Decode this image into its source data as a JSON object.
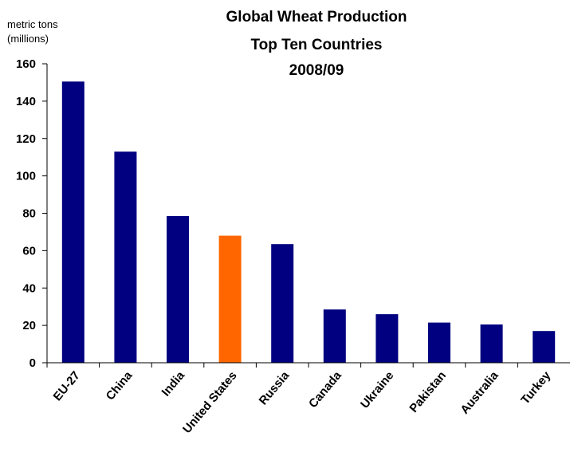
{
  "chart_data": {
    "type": "bar",
    "title_lines": [
      "Global Wheat Production",
      "Top Ten Countries",
      "2008/09"
    ],
    "ylabel_lines": [
      "metric tons",
      "(millions)"
    ],
    "xlabel": "",
    "categories": [
      "EU-27",
      "China",
      "India",
      "United States",
      "Russia",
      "Canada",
      "Ukraine",
      "Pakistan",
      "Australia",
      "Turkey"
    ],
    "values": [
      150.5,
      113,
      78.5,
      68,
      63.5,
      28.5,
      26,
      21.5,
      20.5,
      17
    ],
    "yticks": [
      0,
      20,
      40,
      60,
      80,
      100,
      120,
      140,
      160
    ],
    "ylim": [
      0,
      160
    ],
    "grid": false,
    "legend": "none",
    "colors": {
      "default": "#000080",
      "highlight": "#FF6600",
      "highlight_category": "United States",
      "axis": "#000000"
    }
  }
}
